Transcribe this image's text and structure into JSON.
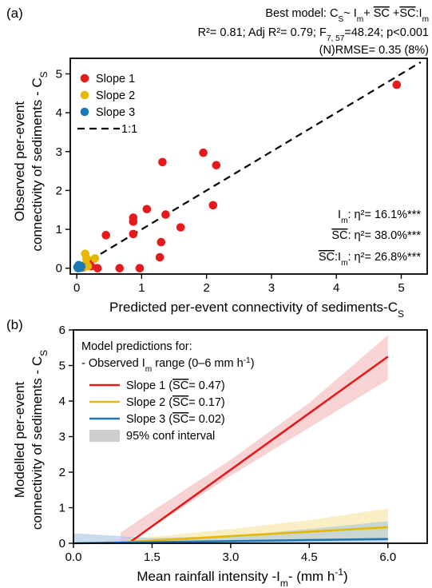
{
  "chart_data": [
    {
      "panel_label": "(a)",
      "type": "scatter",
      "xlabel": "Predicted per-event connectivity of sediments-C",
      "xlabel_sub": "S",
      "ylabel_line1": "Observed per-event",
      "ylabel_line2": "connectivity of sediments - C",
      "ylabel_sub": "S",
      "xlim": [
        -0.1,
        5.4
      ],
      "ylim": [
        -0.15,
        5.4
      ],
      "xticks": [
        "0",
        "1",
        "2",
        "3",
        "4",
        "5"
      ],
      "yticks": [
        "0",
        "1",
        "2",
        "3",
        "4",
        "5"
      ],
      "grid": false,
      "legend_position": "top-left",
      "header": {
        "model_prefix": "Best model: C",
        "model_sub_s": "S",
        "model_tilde": "~ I",
        "model_sub_m": "m",
        "model_plus1": "+ ",
        "model_sc": "SC",
        "model_plus2": " +",
        "model_colon": ":I",
        "model_sub_m2": "m",
        "r2_line": "R²= 0.81; Adj R²= 0.79; F",
        "f_sub": "7, 57",
        "f_rest": "=48.24; p<0.001",
        "rmse_line": "(N)RMSE= 0.35 (8%)"
      },
      "effects": [
        {
          "term": "I",
          "term_sub": "m",
          "value": ": η²= 16.1%***"
        },
        {
          "term": "SC",
          "term_sub": "",
          "value": ": η²= 38.0%***"
        },
        {
          "term": "SC",
          "term_sub": "m",
          "value": ": η²= 26.8%***"
        }
      ],
      "reference_line": {
        "name": "1:1",
        "slope": 1,
        "intercept": 0
      },
      "series": [
        {
          "name": "Slope 1",
          "color": "#e41a1c",
          "points": [
            [
              4.93,
              4.72
            ],
            [
              1.95,
              2.97
            ],
            [
              2.15,
              2.65
            ],
            [
              1.32,
              2.73
            ],
            [
              2.1,
              1.62
            ],
            [
              1.08,
              1.52
            ],
            [
              1.37,
              1.38
            ],
            [
              0.87,
              1.3
            ],
            [
              0.87,
              1.2
            ],
            [
              0.87,
              0.88
            ],
            [
              1.6,
              1.05
            ],
            [
              0.45,
              0.85
            ],
            [
              1.3,
              0.67
            ],
            [
              1.28,
              0.28
            ],
            [
              0.32,
              0.0
            ],
            [
              0.66,
              0.0
            ],
            [
              0.97,
              0.0
            ],
            [
              0.22,
              0.05
            ],
            [
              0.15,
              0.1
            ],
            [
              0.2,
              0.18
            ],
            [
              0.1,
              0.02
            ]
          ]
        },
        {
          "name": "Slope 2",
          "color": "#e6b800",
          "points": [
            [
              0.13,
              0.37
            ],
            [
              0.15,
              0.25
            ],
            [
              0.28,
              0.25
            ],
            [
              0.14,
              0.12
            ],
            [
              0.12,
              0.07
            ],
            [
              0.1,
              0.03
            ],
            [
              0.17,
              0.05
            ],
            [
              0.08,
              0.02
            ]
          ]
        },
        {
          "name": "Slope 3",
          "color": "#1f77b4",
          "points": [
            [
              0.02,
              0.0
            ],
            [
              0.03,
              0.02
            ],
            [
              0.04,
              0.04
            ],
            [
              0.05,
              0.06
            ],
            [
              0.03,
              0.08
            ],
            [
              0.06,
              0.01
            ],
            [
              0.01,
              0.03
            ],
            [
              0.07,
              0.05
            ]
          ]
        }
      ]
    },
    {
      "panel_label": "(b)",
      "type": "line",
      "xlabel": "Mean rainfall intensity -I",
      "xlabel_sub": "m",
      "xlabel_rest": "- (mm h",
      "xlabel_sup": "-1",
      "xlabel_end": ")",
      "ylabel_line1": "Modelled per-event",
      "ylabel_line2": "connectivity of sediments - C",
      "ylabel_sub": "S",
      "xlim": [
        0,
        6.75
      ],
      "ylim": [
        0,
        6
      ],
      "xticks": [
        "0.0",
        "1.5",
        "3.0",
        "4.5",
        "6.0"
      ],
      "xtick_values": [
        0,
        1.5,
        3.0,
        4.5,
        6.0
      ],
      "yticks": [
        "0",
        "1",
        "2",
        "3",
        "4",
        "5",
        "6"
      ],
      "grid": false,
      "legend_position": "top-left",
      "legend_title_line1": "Model predictions for:",
      "legend_title_line2_a": "- Observed I",
      "legend_title_line2_sub": "m",
      "legend_title_line2_b": " range (0–6 mm h",
      "legend_title_line2_sup": "-1",
      "legend_title_line2_c": ")",
      "ci_label": "95% conf interval",
      "series": [
        {
          "name_prefix": "Slope 1 (",
          "name_sc": "SC",
          "name_suffix": "= 0.47)",
          "color": "#e41a1c",
          "band": "#f4b6b8",
          "x": [
            1.05,
            6.0
          ],
          "y": [
            0.0,
            5.25
          ],
          "band_x": [
            0.9,
            1.5,
            3.0,
            4.5,
            6.0
          ],
          "band_lower": [
            0.0,
            0.45,
            1.9,
            3.25,
            4.6
          ],
          "band_upper": [
            0.3,
            0.9,
            2.35,
            3.95,
            5.85
          ]
        },
        {
          "name_prefix": "Slope 2 (",
          "name_sc": "SC",
          "name_suffix": "= 0.17)",
          "color": "#e6b800",
          "band": "#f7e49c",
          "x": [
            0.6,
            6.0
          ],
          "y": [
            0.0,
            0.45
          ],
          "band_x": [
            0.6,
            1.5,
            3.0,
            4.5,
            6.0
          ],
          "band_lower": [
            0.0,
            0.02,
            0.1,
            0.1,
            0.05
          ],
          "band_upper": [
            0.08,
            0.18,
            0.4,
            0.65,
            0.98
          ]
        },
        {
          "name_prefix": "Slope 3 (",
          "name_sc": "SC",
          "name_suffix": "= 0.02)",
          "color": "#1f77b4",
          "band": "#a8c7df",
          "x": [
            0.0,
            6.0
          ],
          "y": [
            0.0,
            0.12
          ],
          "band_x": [
            0.0,
            1.5,
            3.0,
            4.5,
            6.0
          ],
          "band_lower": [
            0.0,
            0.0,
            0.0,
            0.0,
            0.0
          ],
          "band_upper": [
            0.28,
            0.15,
            0.2,
            0.4,
            0.62
          ]
        }
      ]
    }
  ]
}
